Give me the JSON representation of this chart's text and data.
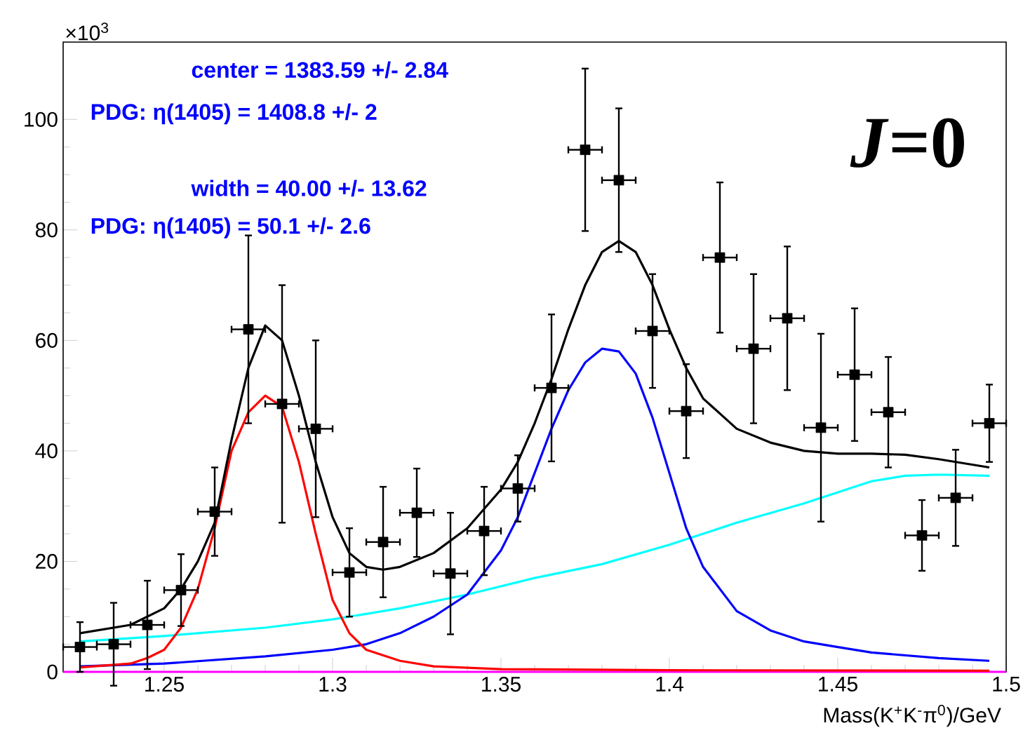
{
  "chart_data": {
    "type": "scatter",
    "xlabel": "Mass(K$^{+}$K$^{-}$π$^{0}$)/GeV",
    "xlim": [
      1.22,
      1.5
    ],
    "xticks": [
      1.25,
      1.3,
      1.35,
      1.4,
      1.45,
      1.5
    ],
    "ylim": [
      0,
      114
    ],
    "yticks": [
      0,
      20,
      40,
      60,
      80,
      100
    ],
    "annotations": [
      "center = 1383.59 +/- 2.84",
      "PDG: η(1405) = 1408.8     +/- 2",
      "width  =  40.00 +/- 13.62",
      "PDG: η(1405) =  50.1      +/- 2.6",
      "*J*=0",
      "×10$^{3}$"
    ],
    "series": [
      {
        "type": "line",
        "color": "#ff00ff",
        "x": [
          1.22,
          1.5
        ],
        "values": [
          0,
          0
        ]
      },
      {
        "type": "line",
        "color": "#00ffff",
        "x": [
          1.225,
          1.25,
          1.28,
          1.3,
          1.32,
          1.34,
          1.36,
          1.38,
          1.4,
          1.42,
          1.44,
          1.45,
          1.46,
          1.47,
          1.48,
          1.495
        ],
        "values": [
          5.5,
          6.5,
          8,
          9.5,
          11.5,
          14,
          17,
          19.5,
          23,
          27,
          30.5,
          32.5,
          34.5,
          35.5,
          35.7,
          35.5
        ]
      },
      {
        "type": "line",
        "color": "#0000ff",
        "x": [
          1.225,
          1.25,
          1.28,
          1.3,
          1.31,
          1.32,
          1.33,
          1.34,
          1.35,
          1.355,
          1.36,
          1.365,
          1.37,
          1.375,
          1.38,
          1.385,
          1.39,
          1.395,
          1.4,
          1.405,
          1.41,
          1.42,
          1.43,
          1.44,
          1.45,
          1.46,
          1.47,
          1.48,
          1.495
        ],
        "values": [
          1,
          1.5,
          2.8,
          4,
          5,
          7,
          10,
          14,
          22,
          28,
          36,
          44,
          51,
          56,
          58.5,
          58,
          54,
          46,
          36,
          26,
          19,
          11,
          7.5,
          5.5,
          4.5,
          3.5,
          3,
          2.5,
          2
        ]
      },
      {
        "type": "line",
        "color": "#ff0000",
        "x": [
          1.225,
          1.24,
          1.245,
          1.25,
          1.255,
          1.26,
          1.265,
          1.27,
          1.275,
          1.28,
          1.285,
          1.29,
          1.295,
          1.3,
          1.305,
          1.31,
          1.32,
          1.33,
          1.35,
          1.4,
          1.495
        ],
        "values": [
          0.8,
          1.5,
          2.5,
          4,
          8,
          15,
          26,
          40,
          47,
          50,
          48,
          38,
          25,
          13,
          7,
          4,
          2,
          1,
          0.5,
          0.3,
          0.2
        ]
      },
      {
        "type": "line",
        "color": "#000000",
        "x": [
          1.225,
          1.24,
          1.25,
          1.255,
          1.26,
          1.265,
          1.27,
          1.275,
          1.28,
          1.285,
          1.29,
          1.295,
          1.3,
          1.305,
          1.31,
          1.315,
          1.32,
          1.33,
          1.34,
          1.35,
          1.355,
          1.36,
          1.365,
          1.37,
          1.375,
          1.38,
          1.385,
          1.39,
          1.395,
          1.4,
          1.405,
          1.41,
          1.42,
          1.43,
          1.44,
          1.45,
          1.46,
          1.47,
          1.48,
          1.49,
          1.495
        ],
        "values": [
          7,
          8.5,
          11.5,
          15,
          20,
          27,
          42,
          55,
          62.7,
          60,
          50,
          38,
          28,
          21.5,
          19,
          18.5,
          19,
          21.5,
          26,
          33,
          38,
          45,
          53,
          62,
          70,
          76,
          78,
          76,
          70,
          62,
          55,
          49.5,
          44,
          41.5,
          40,
          39.5,
          39.5,
          39.3,
          38.5,
          37.5,
          37
        ]
      },
      {
        "color": "#000000",
        "marker": "square",
        "x": [
          1.225,
          1.235,
          1.245,
          1.255,
          1.265,
          1.275,
          1.285,
          1.295,
          1.305,
          1.315,
          1.325,
          1.335,
          1.345,
          1.355,
          1.365,
          1.375,
          1.385,
          1.395,
          1.405,
          1.415,
          1.425,
          1.435,
          1.445,
          1.455,
          1.465,
          1.475,
          1.485,
          1.495
        ],
        "values": [
          4.5,
          5,
          8.5,
          14.8,
          29,
          62,
          48.5,
          44,
          18,
          23.5,
          28.8,
          17.8,
          25.5,
          33.2,
          51.4,
          94.5,
          89,
          61.7,
          47.2,
          75,
          58.5,
          64,
          44.2,
          53.8,
          47,
          24.7,
          31.5,
          45
        ],
        "errors": [
          4.5,
          7.5,
          8,
          6.5,
          8,
          17,
          21.5,
          16,
          8,
          10,
          8,
          11,
          8,
          6,
          13.3,
          14.7,
          13,
          10.3,
          8.5,
          13.6,
          13.5,
          13,
          17,
          12,
          10,
          6.4,
          8.7,
          7
        ],
        "xerrors": [
          0.005,
          0.005,
          0.005,
          0.005,
          0.005,
          0.005,
          0.005,
          0.005,
          0.005,
          0.005,
          0.005,
          0.005,
          0.005,
          0.005,
          0.005,
          0.005,
          0.005,
          0.005,
          0.005,
          0.005,
          0.005,
          0.005,
          0.005,
          0.005,
          0.005,
          0.005,
          0.005,
          0.005
        ]
      }
    ]
  }
}
